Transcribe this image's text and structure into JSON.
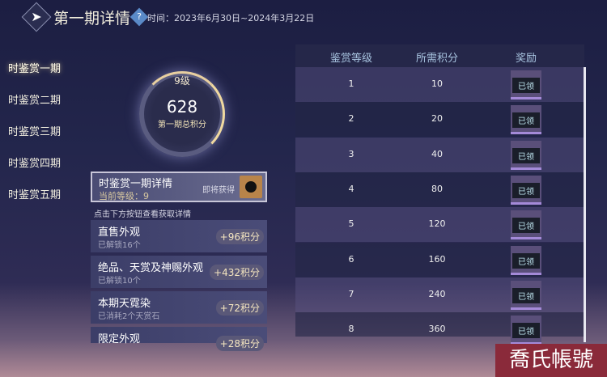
{
  "header": {
    "back_icon": "back-arrow-icon",
    "title": "第一期详情",
    "help_icon": "question-diamond-icon",
    "time": "时间：2023年6月30日~2024年3月22日"
  },
  "nav": [
    {
      "label": "时鉴赏一期",
      "active": true
    },
    {
      "label": "时鉴赏二期"
    },
    {
      "label": "时鉴赏三期"
    },
    {
      "label": "时鉴赏四期"
    },
    {
      "label": "时鉴赏五期"
    }
  ],
  "summary": {
    "level": "9级",
    "score": "628",
    "score_label": "第一期总积分"
  },
  "card": {
    "title": "时鉴赏一期详情",
    "level": "当前等级：9",
    "upcoming": "即将获得"
  },
  "hint": "点击下方按钮查看获取详情",
  "sources": [
    {
      "title": "直售外观",
      "sub": "已解锁16个",
      "points": "+96积分"
    },
    {
      "title": "绝品、天赏及神赐外观",
      "sub": "已解锁10个",
      "points": "+432积分"
    },
    {
      "title": "本期天霓染",
      "sub": "已消耗2个天赏石",
      "points": "+72积分"
    },
    {
      "title": "限定外观",
      "sub": "",
      "points": "+28积分"
    }
  ],
  "table": {
    "headers": [
      "鉴赏等级",
      "所需积分",
      "奖励"
    ],
    "rows": [
      {
        "level": "1",
        "points": "10",
        "reward": "已领"
      },
      {
        "level": "2",
        "points": "20",
        "reward": "已领"
      },
      {
        "level": "3",
        "points": "40",
        "reward": "已领"
      },
      {
        "level": "4",
        "points": "80",
        "reward": "已领"
      },
      {
        "level": "5",
        "points": "120",
        "reward": "已领"
      },
      {
        "level": "6",
        "points": "160",
        "reward": "已领"
      },
      {
        "level": "7",
        "points": "240",
        "reward": "已领"
      },
      {
        "level": "8",
        "points": "360",
        "reward": "已领"
      }
    ]
  },
  "watermark": "喬氏帳號"
}
